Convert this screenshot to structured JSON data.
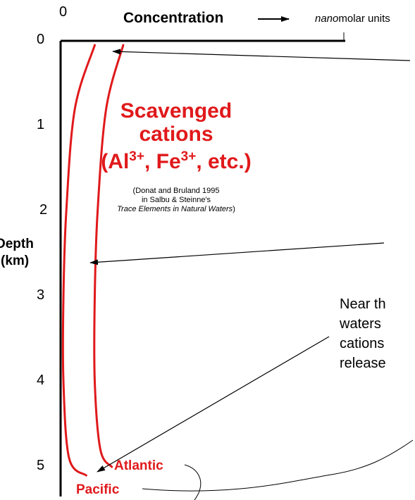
{
  "chart_data": {
    "type": "line",
    "xlabel": "Concentration",
    "x_origin_label": "0",
    "x_units": {
      "prefix": "nano",
      "rest": "molar units"
    },
    "ylabel": [
      "Depth",
      "(km)"
    ],
    "y_ticks": [
      "0",
      "1",
      "2",
      "3",
      "4",
      "5"
    ],
    "ylim": [
      0,
      5
    ],
    "series": [
      {
        "name": "Atlantic",
        "color": "#e0191b",
        "points": [
          [
            0.22,
            0.05
          ],
          [
            0.16,
            0.8
          ],
          [
            0.13,
            2.0
          ],
          [
            0.12,
            3.0
          ],
          [
            0.12,
            4.0
          ],
          [
            0.14,
            4.8
          ],
          [
            0.18,
            5.0
          ]
        ]
      },
      {
        "name": "Pacific",
        "color": "#e0191b",
        "points": [
          [
            0.12,
            0.05
          ],
          [
            0.05,
            0.8
          ],
          [
            0.02,
            2.0
          ],
          [
            0.01,
            3.0
          ],
          [
            0.01,
            4.0
          ],
          [
            0.03,
            4.9
          ],
          [
            0.09,
            5.1
          ]
        ]
      }
    ],
    "annotation": {
      "title_lines": [
        "Scavenged",
        "cations"
      ],
      "formula": {
        "open": "(Al",
        "sup1": "3+",
        "mid": ", Fe",
        "sup2": "3+",
        "close": ", etc.)"
      },
      "citation_lines": [
        "(Donat and Bruland 1995",
        "in Salbu & Steinne's"
      ],
      "citation_italic": "Trace Elements in Natural Waters",
      "citation_close": ")"
    },
    "side_note_lines": [
      "Near th",
      "waters",
      "cations",
      "release"
    ]
  }
}
